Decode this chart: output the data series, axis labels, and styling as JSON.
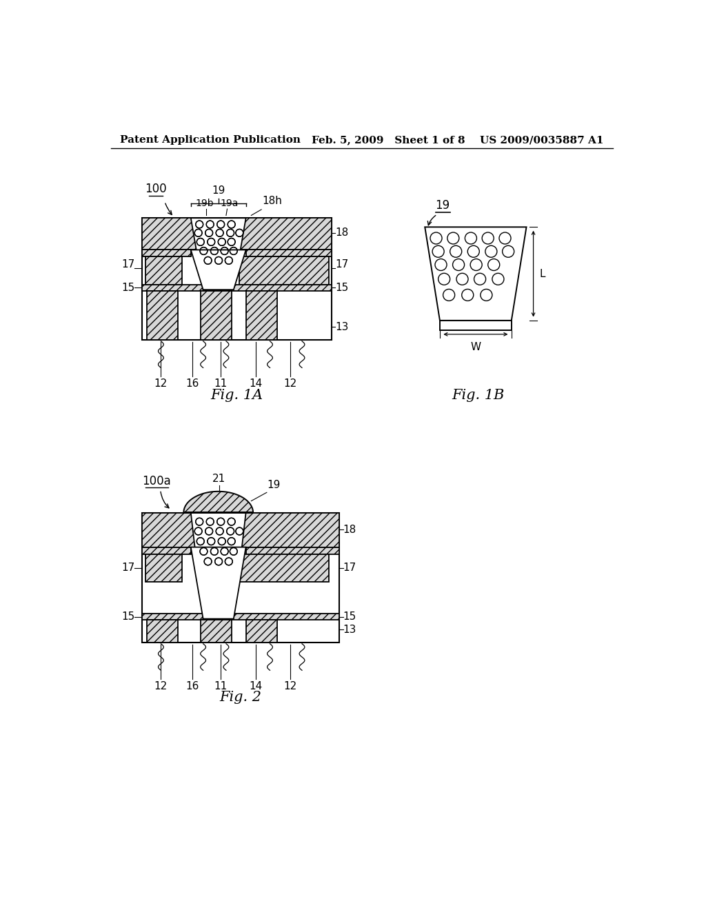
{
  "bg_color": "#ffffff",
  "header_left": "Patent Application Publication",
  "header_mid": "Feb. 5, 2009   Sheet 1 of 8",
  "header_right": "US 2009/0035887 A1",
  "fig1a_label": "Fig. 1A",
  "fig1b_label": "Fig. 1B",
  "fig2_label": "Fig. 2",
  "hatch_fc": "#d8d8d8",
  "hatch_pattern": "///",
  "lw_main": 1.3,
  "lw_border": 1.5,
  "label_fs": 11,
  "caption_fs": 15
}
